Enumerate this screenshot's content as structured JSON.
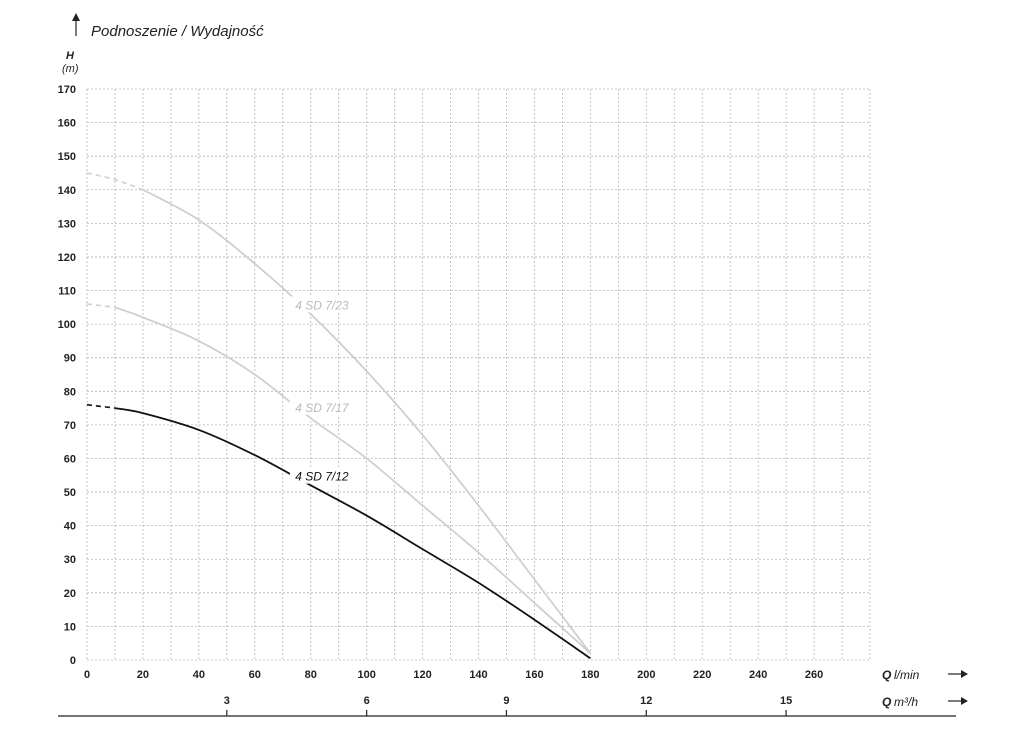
{
  "chart_data": {
    "type": "line",
    "title": "Podnoszenie / Wydajność",
    "ylabel": "H",
    "yunit": "(m)",
    "xlabel_primary": "Q",
    "xunit_primary": "l/min",
    "xlabel_secondary": "Q",
    "xunit_secondary": "m³/h",
    "xlim": [
      0,
      280
    ],
    "ylim": [
      0,
      170
    ],
    "yticks": [
      "0",
      "10",
      "20",
      "30",
      "40",
      "50",
      "60",
      "70",
      "80",
      "90",
      "100",
      "110",
      "120",
      "130",
      "140",
      "150",
      "160",
      "170"
    ],
    "xticks": [
      "0",
      "20",
      "40",
      "60",
      "80",
      "100",
      "120",
      "140",
      "160",
      "180",
      "200",
      "220",
      "240",
      "260"
    ],
    "xticks_secondary": [
      {
        "label": "3",
        "value": 3
      },
      {
        "label": "6",
        "value": 6
      },
      {
        "label": "9",
        "value": 9
      },
      {
        "label": "12",
        "value": 12
      },
      {
        "label": "15",
        "value": 15
      }
    ],
    "grid": true,
    "series": [
      {
        "name": "4 SD 7/23",
        "color": "#cfcfcf",
        "dashed_until_x": 20,
        "label_at": [
          84,
          105
        ],
        "x": [
          0,
          10,
          20,
          40,
          60,
          80,
          100,
          120,
          140,
          160,
          180
        ],
        "y": [
          145,
          143,
          140,
          131,
          118,
          103,
          86,
          67,
          46,
          24,
          2
        ]
      },
      {
        "name": "4 SD 7/17",
        "color": "#cfcfcf",
        "dashed_until_x": 10,
        "label_at": [
          84,
          74.5
        ],
        "x": [
          0,
          10,
          20,
          40,
          60,
          80,
          100,
          120,
          140,
          160,
          180
        ],
        "y": [
          106,
          105,
          102,
          95,
          85,
          72,
          60,
          46,
          32,
          17,
          2
        ]
      },
      {
        "name": "4 SD 7/12",
        "color": "#111111",
        "dashed_until_x": 10,
        "label_at": [
          84,
          54
        ],
        "x": [
          0,
          10,
          20,
          40,
          60,
          80,
          100,
          120,
          140,
          160,
          180
        ],
        "y": [
          76,
          75,
          73.5,
          68.5,
          61,
          52,
          43,
          33,
          23,
          12,
          0.5
        ]
      }
    ]
  }
}
